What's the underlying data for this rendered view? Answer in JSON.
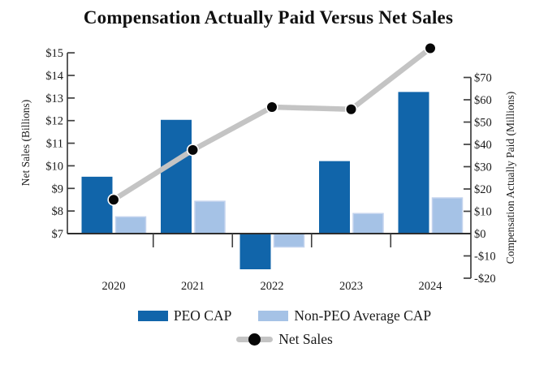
{
  "chart_data": {
    "type": "combo-bar-line",
    "title": "Compensation Actually Paid Versus Net Sales",
    "categories": [
      "2020",
      "2021",
      "2022",
      "2023",
      "2024"
    ],
    "bar_series": [
      {
        "name": "PEO CAP",
        "axis": "right",
        "values": [
          25.5,
          51,
          -16,
          32.5,
          63.5
        ]
      },
      {
        "name": "Non-PEO Average CAP",
        "axis": "right",
        "values": [
          7.5,
          14.5,
          -6,
          9,
          16
        ]
      }
    ],
    "line_series": {
      "name": "Net Sales",
      "axis": "left",
      "values": [
        8.5,
        10.7,
        12.6,
        12.5,
        15.2
      ]
    },
    "left_axis": {
      "label": "Net Sales (Billions)",
      "tick_labels": [
        "$15",
        "$14",
        "$13",
        "$12",
        "$11",
        "$10",
        "$9",
        "$8",
        "$7"
      ],
      "tick_values": [
        15,
        14,
        13,
        12,
        11,
        10,
        9,
        8,
        7
      ],
      "range": [
        7,
        15
      ],
      "units": "billions USD"
    },
    "right_axis": {
      "label": "Compensation Actually Paid (Millions)",
      "tick_labels": [
        "$70",
        "$60",
        "$50",
        "$40",
        "$30",
        "$20",
        "$10",
        "$0",
        "-$10",
        "-$20"
      ],
      "tick_values": [
        70,
        60,
        50,
        40,
        30,
        20,
        10,
        0,
        -10,
        -20
      ],
      "range": [
        -20,
        70
      ],
      "units": "millions USD"
    },
    "legend": [
      "PEO CAP",
      "Non-PEO Average CAP",
      "Net Sales"
    ],
    "colors": {
      "peo_cap": "#1165aa",
      "non_peo_cap": "#a5c2e6",
      "non_peo_cap_border": "#c3d3ee",
      "net_sales_line": "#c4c4c4",
      "marker": "#070707",
      "marker_ring": "#ffffff",
      "axis": "#3f3f3f",
      "text": "#1a1a1a"
    },
    "grid": "off",
    "legend_position": "bottom"
  }
}
